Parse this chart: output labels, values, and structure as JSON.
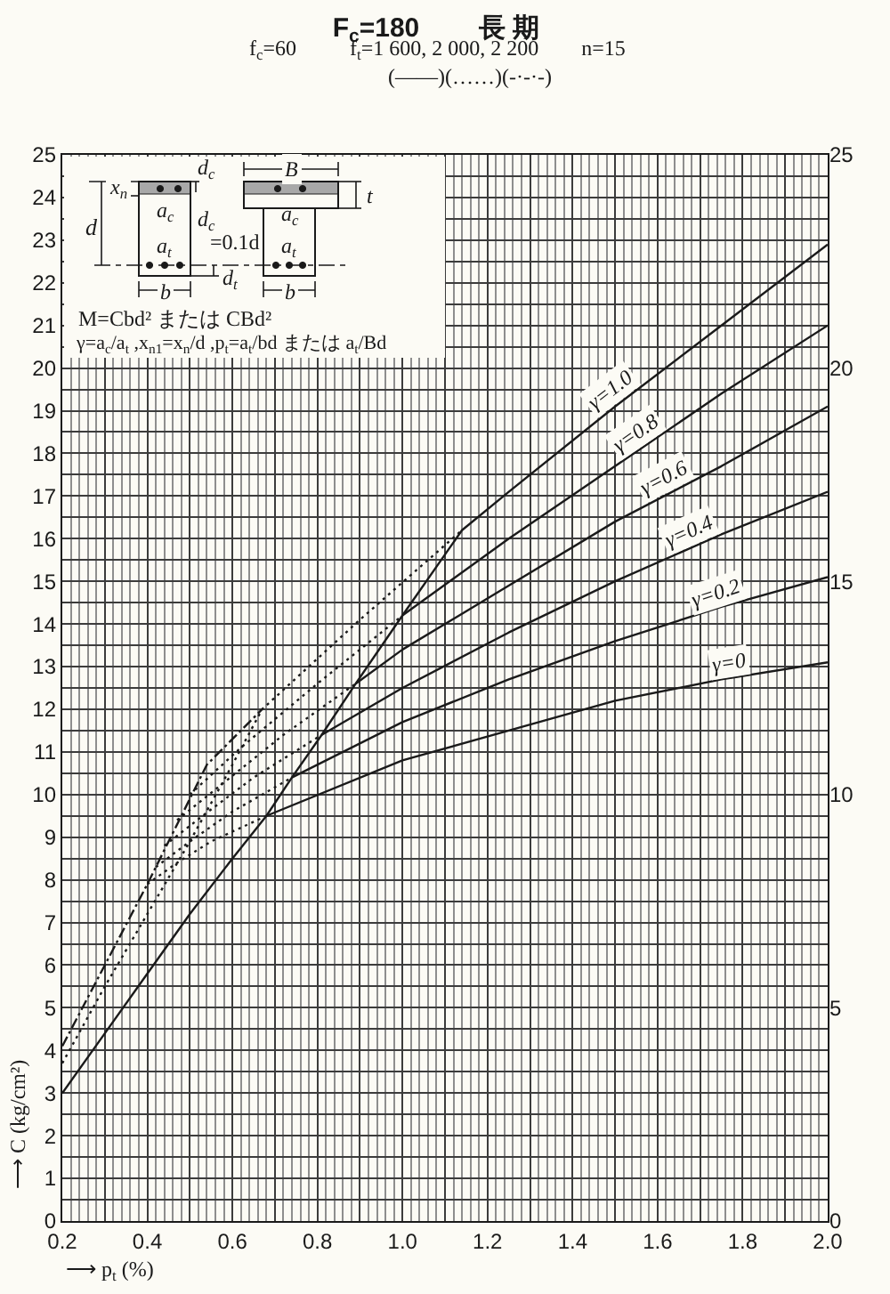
{
  "chart_data": {
    "type": "line",
    "title": "F$_{c}$=180        長 期",
    "subtitle": "f$_{c}$=60          f$_{t}$=1 600, 2 000, 2 200        n=15",
    "xlabel": "⟶ p$_{t}$ (%)",
    "ylabel": "⟶ C (kg/cm²)",
    "annotations": [
      "(——)(……)(-·-·-)",
      "x$_{n}$",
      "d$_{c}$",
      "a$_{c}$",
      "d",
      "d$_{c}$",
      "=0.1d",
      "a$_{t}$",
      "d$_{t}$",
      "b",
      "B",
      "t",
      "a$_{c}$",
      "a$_{t}$",
      "b",
      "M=Cbd² または CBd²",
      "γ=a$_{c}$/a$_{t}$ ,x$_{n1}$=x$_{n}$/d ,p$_{t}$=a$_{t}$/bd または a$_{t}$/Bd"
    ],
    "xlim": [
      0.2,
      2.0
    ],
    "xticks": [
      0.2,
      {
        "value": 0.22,
        "label": null
      },
      {
        "value": 0.24,
        "label": null
      },
      {
        "value": 0.26,
        "label": null
      },
      {
        "value": 0.28,
        "label": null
      },
      {
        "value": 0.3,
        "label": null
      },
      {
        "value": 0.32,
        "label": null
      },
      {
        "value": 0.34,
        "label": null
      },
      {
        "value": 0.36,
        "label": null
      },
      {
        "value": 0.38,
        "label": null
      },
      0.4,
      {
        "value": 0.42,
        "label": null
      },
      {
        "value": 0.44,
        "label": null
      },
      {
        "value": 0.46,
        "label": null
      },
      {
        "value": 0.48,
        "label": null
      },
      {
        "value": 0.5,
        "label": null
      },
      {
        "value": 0.52,
        "label": null
      },
      {
        "value": 0.54,
        "label": null
      },
      {
        "value": 0.56,
        "label": null
      },
      {
        "value": 0.58,
        "label": null
      },
      0.6,
      {
        "value": 0.62,
        "label": null
      },
      {
        "value": 0.64,
        "label": null
      },
      {
        "value": 0.66,
        "label": null
      },
      {
        "value": 0.68,
        "label": null
      },
      {
        "value": 0.7,
        "label": null
      },
      {
        "value": 0.72,
        "label": null
      },
      {
        "value": 0.74,
        "label": null
      },
      {
        "value": 0.76,
        "label": null
      },
      {
        "value": 0.78,
        "label": null
      },
      0.8,
      {
        "value": 0.82,
        "label": null
      },
      {
        "value": 0.84,
        "label": null
      },
      {
        "value": 0.86,
        "label": null
      },
      {
        "value": 0.88,
        "label": null
      },
      {
        "value": 0.9,
        "label": null
      },
      {
        "value": 0.92,
        "label": null
      },
      {
        "value": 0.94,
        "label": null
      },
      {
        "value": 0.96,
        "label": null
      },
      {
        "value": 0.98,
        "label": null
      },
      {
        "value": 1,
        "label": "1.0"
      },
      {
        "value": 1.02,
        "label": null
      },
      {
        "value": 1.04,
        "label": null
      },
      {
        "value": 1.06,
        "label": null
      },
      {
        "value": 1.08,
        "label": null
      },
      {
        "value": 1.1,
        "label": null
      },
      {
        "value": 1.12,
        "label": null
      },
      {
        "value": 1.14,
        "label": null
      },
      {
        "value": 1.16,
        "label": null
      },
      {
        "value": 1.18,
        "label": null
      },
      1.2,
      {
        "value": 1.22,
        "label": null
      },
      {
        "value": 1.24,
        "label": null
      },
      {
        "value": 1.26,
        "label": null
      },
      {
        "value": 1.28,
        "label": null
      },
      {
        "value": 1.3,
        "label": null
      },
      {
        "value": 1.32,
        "label": null
      },
      {
        "value": 1.34,
        "label": null
      },
      {
        "value": 1.36,
        "label": null
      },
      {
        "value": 1.38,
        "label": null
      },
      1.4,
      {
        "value": 1.42,
        "label": null
      },
      {
        "value": 1.44,
        "label": null
      },
      {
        "value": 1.46,
        "label": null
      },
      {
        "value": 1.48,
        "label": null
      },
      {
        "value": 1.5,
        "label": null
      },
      {
        "value": 1.52,
        "label": null
      },
      {
        "value": 1.54,
        "label": null
      },
      {
        "value": 1.56,
        "label": null
      },
      {
        "value": 1.58,
        "label": null
      },
      1.6,
      {
        "value": 1.62,
        "label": null
      },
      {
        "value": 1.64,
        "label": null
      },
      {
        "value": 1.66,
        "label": null
      },
      {
        "value": 1.68,
        "label": null
      },
      {
        "value": 1.7,
        "label": null
      },
      {
        "value": 1.72,
        "label": null
      },
      {
        "value": 1.74,
        "label": null
      },
      {
        "value": 1.76,
        "label": null
      },
      {
        "value": 1.78,
        "label": null
      },
      1.8,
      {
        "value": 1.82,
        "label": null
      },
      {
        "value": 1.84,
        "label": null
      },
      {
        "value": 1.86,
        "label": null
      },
      {
        "value": 1.88,
        "label": null
      },
      {
        "value": 1.9,
        "label": null
      },
      {
        "value": 1.92,
        "label": null
      },
      {
        "value": 1.94,
        "label": null
      },
      {
        "value": 1.96,
        "label": null
      },
      {
        "value": 1.98,
        "label": null
      },
      {
        "value": 2,
        "label": "2.0"
      }
    ],
    "ylim": [
      0,
      25
    ],
    "yticks": [
      0,
      {
        "value": 0.5,
        "label": null
      },
      1,
      {
        "value": 1.5,
        "label": null
      },
      2,
      {
        "value": 2.5,
        "label": null
      },
      3,
      {
        "value": 3.5,
        "label": null
      },
      4,
      {
        "value": 4.5,
        "label": null
      },
      5,
      {
        "value": 5.5,
        "label": null
      },
      6,
      {
        "value": 6.5,
        "label": null
      },
      7,
      {
        "value": 7.5,
        "label": null
      },
      8,
      {
        "value": 8.5,
        "label": null
      },
      9,
      {
        "value": 9.5,
        "label": null
      },
      10,
      {
        "value": 10.5,
        "label": null
      },
      11,
      {
        "value": 11.5,
        "label": null
      },
      12,
      {
        "value": 12.5,
        "label": null
      },
      13,
      {
        "value": 13.5,
        "label": null
      },
      14,
      {
        "value": 14.5,
        "label": null
      },
      15,
      {
        "value": 15.5,
        "label": null
      },
      16,
      {
        "value": 16.5,
        "label": null
      },
      17,
      {
        "value": 17.5,
        "label": null
      },
      18,
      {
        "value": 18.5,
        "label": null
      },
      19,
      {
        "value": 19.5,
        "label": null
      },
      20,
      {
        "value": 20.5,
        "label": null
      },
      21,
      {
        "value": 21.5,
        "label": null
      },
      22,
      {
        "value": 22.5,
        "label": null
      },
      23,
      {
        "value": 23.5,
        "label": null
      },
      24,
      {
        "value": 24.5,
        "label": null
      },
      25
    ],
    "y2lim": [
      0,
      25
    ],
    "y2ticks": [
      0,
      5,
      10,
      15,
      20,
      25
    ],
    "grid": true,
    "series": [
      {
        "name": "γ=1.0",
        "color": "#1a1a1a",
        "line_style": "solid",
        "x": [
          0.2,
          0.3,
          0.4,
          0.5,
          0.6,
          0.68,
          0.74,
          0.81,
          0.89,
          1.0,
          1.14,
          1.25,
          1.5,
          1.75,
          2.0
        ],
        "values": [
          3.0,
          4.4,
          5.8,
          7.2,
          8.5,
          9.5,
          10.4,
          11.4,
          12.6,
          14.2,
          16.2,
          17.1,
          19.1,
          21.0,
          22.9
        ]
      },
      {
        "name": "γ=0.8",
        "color": "#1a1a1a",
        "line_style": "solid",
        "x": [
          1.0,
          1.25,
          1.5,
          1.75,
          2.0
        ],
        "values": [
          14.2,
          16.0,
          17.7,
          19.4,
          21.0
        ]
      },
      {
        "name": "γ=0.6",
        "color": "#1a1a1a",
        "line_style": "solid",
        "x": [
          0.89,
          1.0,
          1.25,
          1.5,
          1.75,
          2.0
        ],
        "values": [
          12.6,
          13.4,
          14.9,
          16.4,
          17.7,
          19.1
        ]
      },
      {
        "name": "γ=0.4",
        "color": "#1a1a1a",
        "line_style": "solid",
        "x": [
          0.81,
          1.0,
          1.25,
          1.5,
          1.75,
          2.0
        ],
        "values": [
          11.4,
          12.5,
          13.8,
          15.0,
          16.1,
          17.1
        ]
      },
      {
        "name": "γ=0.2",
        "color": "#1a1a1a",
        "line_style": "solid",
        "x": [
          0.74,
          1.0,
          1.25,
          1.5,
          1.75,
          2.0
        ],
        "values": [
          10.4,
          11.7,
          12.7,
          13.6,
          14.4,
          15.1
        ]
      },
      {
        "name": "γ=0",
        "color": "#1a1a1a",
        "line_style": "solid",
        "x": [
          0.68,
          1.0,
          1.25,
          1.5,
          1.75,
          2.0
        ],
        "values": [
          9.5,
          10.8,
          11.5,
          12.2,
          12.7,
          13.1
        ]
      },
      {
        "color": "#1a1a1a",
        "line_style": "dotted",
        "x": [
          0.2,
          0.3,
          0.4,
          0.5,
          0.6,
          0.67,
          0.9,
          1.14
        ],
        "values": [
          3.7,
          5.5,
          7.2,
          8.9,
          10.7,
          12.0,
          14.1,
          16.2
        ]
      },
      {
        "color": "#1a1a1a",
        "line_style": "dashdot",
        "x": [
          0.2,
          0.3,
          0.4,
          0.5,
          0.54,
          0.67
        ],
        "values": [
          4.1,
          6.0,
          7.9,
          9.9,
          10.7,
          12.0
        ]
      },
      {
        "color": "#1a1a1a",
        "line_style": "dotted",
        "x": [
          0.5,
          0.62,
          0.8,
          1.0
        ],
        "values": [
          10.0,
          11.1,
          12.6,
          14.2
        ]
      },
      {
        "color": "#1a1a1a",
        "line_style": "dotted",
        "x": [
          0.47,
          0.57,
          0.72,
          0.89
        ],
        "values": [
          9.4,
          10.2,
          11.4,
          12.6
        ]
      },
      {
        "color": "#1a1a1a",
        "line_style": "dotted",
        "x": [
          0.44,
          0.53,
          0.65,
          0.81
        ],
        "values": [
          8.8,
          9.5,
          10.4,
          11.4
        ]
      },
      {
        "color": "#1a1a1a",
        "line_style": "dotted",
        "x": [
          0.42,
          0.5,
          0.6,
          0.74
        ],
        "values": [
          8.3,
          8.9,
          9.6,
          10.4
        ]
      },
      {
        "color": "#1a1a1a",
        "line_style": "dotted",
        "x": [
          0.4,
          0.47,
          0.55,
          0.68
        ],
        "values": [
          7.9,
          8.4,
          8.9,
          9.5
        ]
      }
    ]
  }
}
